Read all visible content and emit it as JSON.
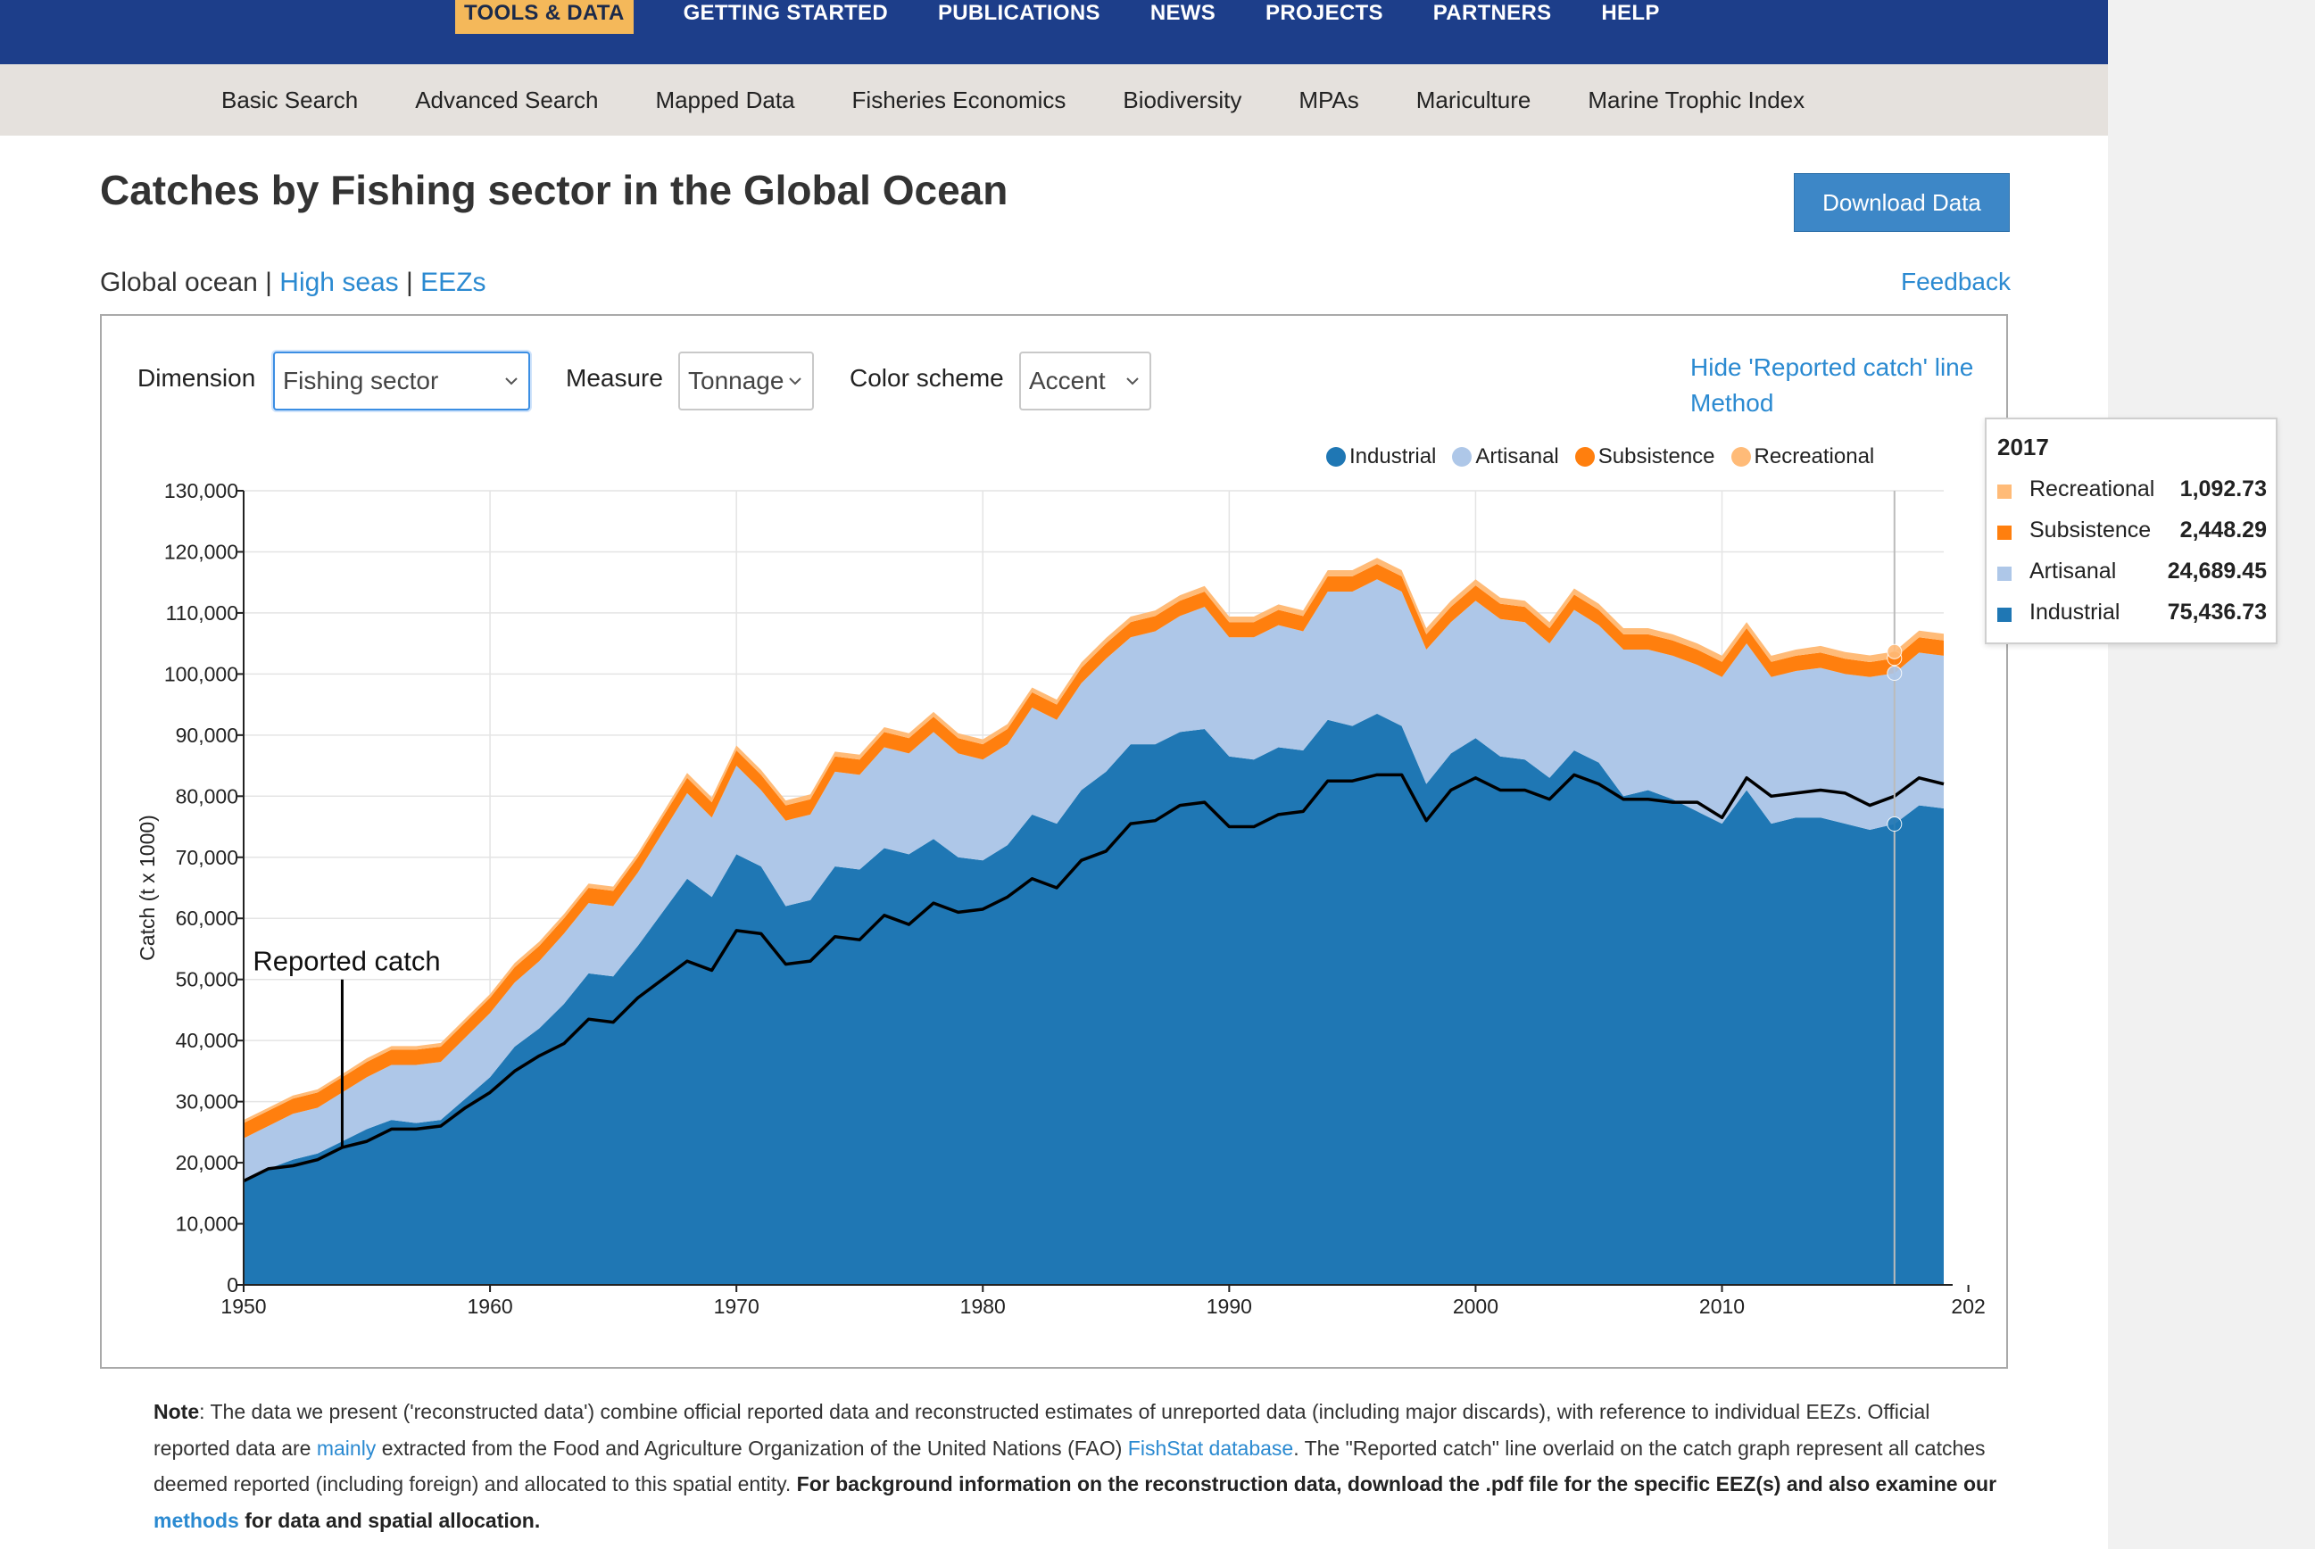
{
  "nav": {
    "top": [
      "TOOLS & DATA",
      "GETTING STARTED",
      "PUBLICATIONS",
      "NEWS",
      "PROJECTS",
      "PARTNERS",
      "HELP"
    ],
    "sub": [
      "Basic Search",
      "Advanced Search",
      "Mapped Data",
      "Fisheries Economics",
      "Biodiversity",
      "MPAs",
      "Mariculture",
      "Marine Trophic Index"
    ]
  },
  "page": {
    "title": "Catches by Fishing sector in the Global Ocean",
    "download_label": "Download Data",
    "region_current": "Global ocean",
    "region_sep": "|",
    "region_high_seas": "High seas",
    "region_eezs": "EEZs",
    "feedback": "Feedback"
  },
  "controls": {
    "dimension_label": "Dimension",
    "dimension_value": "Fishing sector",
    "measure_label": "Measure",
    "measure_value": "Tonnage",
    "color_label": "Color scheme",
    "color_value": "Accent",
    "hide_link": "Hide 'Reported catch' line",
    "method_link": "Method"
  },
  "legend": [
    {
      "name": "Industrial",
      "color": "#1f77b4"
    },
    {
      "name": "Artisanal",
      "color": "#aec7e8"
    },
    {
      "name": "Subsistence",
      "color": "#ff7f0e"
    },
    {
      "name": "Recreational",
      "color": "#ffbb78"
    }
  ],
  "tooltip": {
    "year": "2017",
    "rows": [
      {
        "name": "Recreational",
        "value": "1,092.73",
        "color": "#ffbb78"
      },
      {
        "name": "Subsistence",
        "value": "2,448.29",
        "color": "#ff7f0e"
      },
      {
        "name": "Artisanal",
        "value": "24,689.45",
        "color": "#aec7e8"
      },
      {
        "name": "Industrial",
        "value": "75,436.73",
        "color": "#1f77b4"
      }
    ]
  },
  "note": {
    "lead": "Note",
    "t1": ": The data we present ('reconstructed data') combine official reported data and reconstructed estimates of unreported data (including major discards), with reference to individual EEZs. Official reported data are ",
    "link1": "mainly",
    "t2": " extracted from the Food and Agriculture Organization of the United Nations (FAO) ",
    "link2": "FishStat database",
    "t3": ". The \"Reported catch\" line overlaid on the catch graph represent all catches deemed reported (including foreign) and allocated to this spatial entity. ",
    "bold1": "For background information on the reconstruction data, download the .pdf file for the specific EEZ(s) and also examine our ",
    "link3": "methods",
    "bold2": " for data and spatial allocation."
  },
  "chart_data": {
    "type": "area",
    "stacked": true,
    "ylabel": "Catch (t x 1000)",
    "xlabel": "",
    "ylim": [
      0,
      130000
    ],
    "xlim": [
      1950,
      2019
    ],
    "x_ticks": [
      "1950",
      "1960",
      "1970",
      "1980",
      "1990",
      "2000",
      "2010",
      "202"
    ],
    "y_ticks": [
      "0",
      "10,000",
      "20,000",
      "30,000",
      "40,000",
      "50,000",
      "60,000",
      "70,000",
      "80,000",
      "90,000",
      "100,000",
      "110,000",
      "120,000",
      "130,000"
    ],
    "grid": true,
    "legend_position": "top-right",
    "x": [
      1950,
      1951,
      1952,
      1953,
      1954,
      1955,
      1956,
      1957,
      1958,
      1959,
      1960,
      1961,
      1962,
      1963,
      1964,
      1965,
      1966,
      1967,
      1968,
      1969,
      1970,
      1971,
      1972,
      1973,
      1974,
      1975,
      1976,
      1977,
      1978,
      1979,
      1980,
      1981,
      1982,
      1983,
      1984,
      1985,
      1986,
      1987,
      1988,
      1989,
      1990,
      1991,
      1992,
      1993,
      1994,
      1995,
      1996,
      1997,
      1998,
      1999,
      2000,
      2001,
      2002,
      2003,
      2004,
      2005,
      2006,
      2007,
      2008,
      2009,
      2010,
      2011,
      2012,
      2013,
      2014,
      2015,
      2016,
      2017,
      2018,
      2019
    ],
    "series": [
      {
        "name": "Industrial",
        "color": "#1f77b4",
        "values": [
          17000,
          19000,
          20500,
          21500,
          23500,
          25500,
          27000,
          26500,
          27000,
          30500,
          34000,
          39000,
          42000,
          46000,
          51000,
          50500,
          55500,
          61000,
          66500,
          63500,
          70500,
          68500,
          62000,
          63000,
          68500,
          68000,
          71500,
          70500,
          73000,
          70000,
          69500,
          72000,
          77000,
          75500,
          81000,
          84000,
          88500,
          88500,
          90500,
          91000,
          86500,
          86000,
          88000,
          87500,
          92500,
          91500,
          93500,
          91500,
          82000,
          87000,
          89500,
          86500,
          86000,
          83000,
          87500,
          85500,
          80000,
          81000,
          79500,
          77500,
          75500,
          81000,
          75500,
          76500,
          76500,
          75500,
          74500,
          75437,
          78500,
          78000
        ]
      },
      {
        "name": "Artisanal",
        "color": "#aec7e8",
        "values": [
          7000,
          7000,
          7500,
          7500,
          8000,
          8500,
          9000,
          9500,
          9500,
          10000,
          10500,
          10500,
          11000,
          11500,
          11500,
          11500,
          12000,
          13000,
          14000,
          13000,
          14500,
          12500,
          14000,
          14000,
          15500,
          15500,
          16500,
          16500,
          17500,
          17000,
          16500,
          16500,
          17500,
          17000,
          17500,
          18500,
          17500,
          18500,
          19000,
          20000,
          19500,
          20000,
          20000,
          19500,
          21000,
          22000,
          22000,
          22000,
          22000,
          21500,
          22500,
          22500,
          22500,
          22000,
          23000,
          22500,
          24000,
          23000,
          23500,
          24000,
          24000,
          24000,
          24000,
          24000,
          24500,
          24500,
          25000,
          24689,
          25000,
          25000
        ]
      },
      {
        "name": "Subsistence",
        "color": "#ff7f0e",
        "values": [
          2500,
          2500,
          2500,
          2500,
          2500,
          2500,
          2500,
          2500,
          2500,
          2500,
          2500,
          2500,
          2500,
          2500,
          2500,
          2500,
          2500,
          2500,
          2500,
          2500,
          2500,
          2500,
          2500,
          2500,
          2500,
          2500,
          2500,
          2500,
          2500,
          2500,
          2500,
          2500,
          2500,
          2500,
          2500,
          2500,
          2500,
          2500,
          2500,
          2500,
          2500,
          2500,
          2500,
          2500,
          2500,
          2500,
          2500,
          2500,
          2500,
          2500,
          2500,
          2500,
          2500,
          2500,
          2500,
          2500,
          2500,
          2500,
          2500,
          2500,
          2500,
          2500,
          2500,
          2500,
          2500,
          2500,
          2448,
          2448,
          2500,
          2500
        ]
      },
      {
        "name": "Recreational",
        "color": "#ffbb78",
        "values": [
          500,
          500,
          500,
          500,
          500,
          600,
          600,
          600,
          600,
          600,
          600,
          700,
          700,
          700,
          700,
          700,
          700,
          700,
          800,
          800,
          800,
          800,
          800,
          800,
          800,
          800,
          800,
          800,
          800,
          800,
          800,
          800,
          800,
          800,
          900,
          900,
          900,
          900,
          900,
          900,
          900,
          900,
          900,
          900,
          1000,
          1000,
          1000,
          1000,
          1000,
          1000,
          1000,
          1000,
          1000,
          1000,
          1000,
          1000,
          1000,
          1000,
          1000,
          1000,
          1000,
          1000,
          1000,
          1000,
          1100,
          1100,
          1100,
          1093,
          1100,
          1100
        ]
      },
      {
        "name": "Reported catch",
        "type": "line",
        "color": "#000000",
        "values": [
          17000,
          19000,
          19500,
          20500,
          22500,
          23500,
          25500,
          25500,
          26000,
          29000,
          31500,
          35000,
          37500,
          39500,
          43500,
          43000,
          47000,
          50000,
          53000,
          51500,
          58000,
          57500,
          52500,
          53000,
          57000,
          56500,
          60500,
          59000,
          62500,
          61000,
          61500,
          63500,
          66500,
          65000,
          69500,
          71000,
          75500,
          76000,
          78500,
          79000,
          75000,
          75000,
          77000,
          77500,
          82500,
          82500,
          83500,
          83500,
          76000,
          81000,
          83000,
          81000,
          81000,
          79500,
          83500,
          82000,
          79500,
          79500,
          79000,
          79000,
          76500,
          83000,
          80000,
          80500,
          81000,
          80500,
          78500,
          80000,
          83000,
          82000
        ]
      }
    ],
    "annotations": [
      {
        "text": "Reported catch",
        "x": 1954
      }
    ],
    "highlight_year": 2017
  }
}
